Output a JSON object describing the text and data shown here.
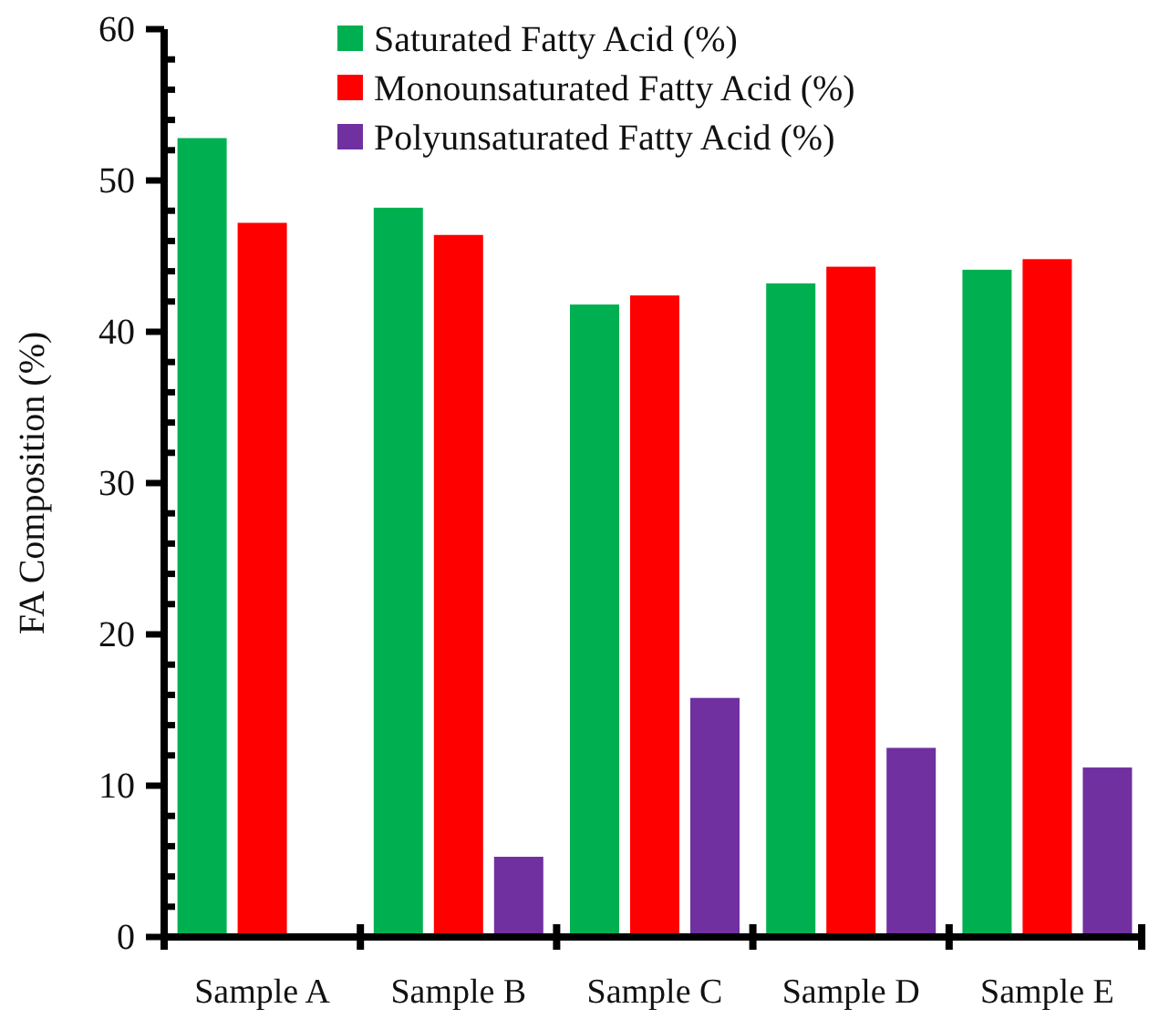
{
  "chart_data": {
    "type": "bar",
    "ylabel": "FA  Composition (%)",
    "categories": [
      "Sample A",
      "Sample B",
      "Sample C",
      "Sample D",
      "Sample E"
    ],
    "series": [
      {
        "name": "Saturated Fatty Acid (%)",
        "color": "#00b050",
        "values": [
          52.8,
          48.2,
          41.8,
          43.2,
          44.1
        ]
      },
      {
        "name": "Monounsaturated Fatty Acid (%)",
        "color": "#ff0000",
        "values": [
          47.2,
          46.4,
          42.4,
          44.3,
          44.8
        ]
      },
      {
        "name": "Polyunsaturated Fatty Acid (%)",
        "color": "#7030a0",
        "values": [
          null,
          5.3,
          15.8,
          12.5,
          11.2
        ]
      }
    ],
    "ylim": [
      0,
      60
    ],
    "yticks": [
      0,
      {
        "value": 2,
        "label": null
      },
      {
        "value": 4,
        "label": null
      },
      {
        "value": 6,
        "label": null
      },
      {
        "value": 8,
        "label": null
      },
      10,
      {
        "value": 12,
        "label": null
      },
      {
        "value": 14,
        "label": null
      },
      {
        "value": 16,
        "label": null
      },
      {
        "value": 18,
        "label": null
      },
      20,
      {
        "value": 22,
        "label": null
      },
      {
        "value": 24,
        "label": null
      },
      {
        "value": 26,
        "label": null
      },
      {
        "value": 28,
        "label": null
      },
      30,
      {
        "value": 32,
        "label": null
      },
      {
        "value": 34,
        "label": null
      },
      {
        "value": 36,
        "label": null
      },
      {
        "value": 38,
        "label": null
      },
      40,
      {
        "value": 42,
        "label": null
      },
      {
        "value": 44,
        "label": null
      },
      {
        "value": 46,
        "label": null
      },
      {
        "value": 48,
        "label": null
      },
      50,
      {
        "value": 52,
        "label": null
      },
      {
        "value": 54,
        "label": null
      },
      {
        "value": 56,
        "label": null
      },
      {
        "value": 58,
        "label": null
      },
      60
    ],
    "grid": false,
    "legend": "top"
  }
}
